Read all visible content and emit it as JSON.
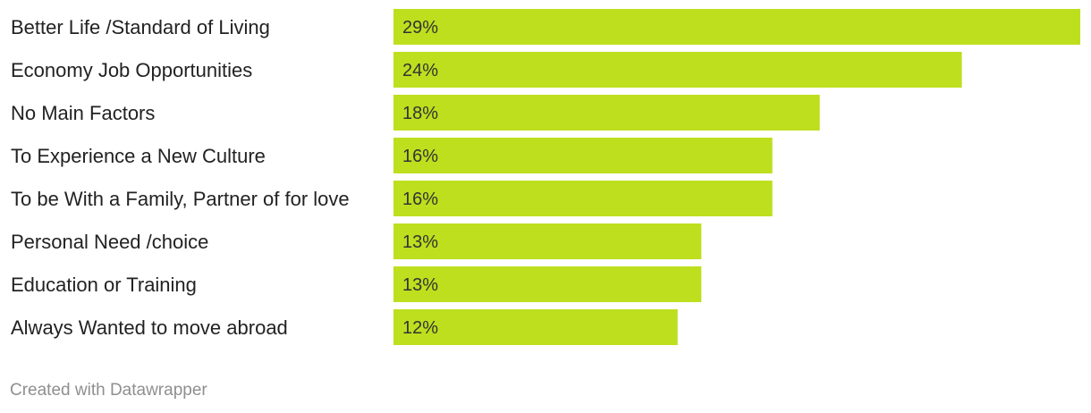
{
  "chart_data": {
    "type": "bar",
    "orientation": "horizontal",
    "categories": [
      "Better Life /Standard of Living",
      "Economy Job Opportunities",
      "No Main Factors",
      "To Experience a New Culture",
      "To be With a Family, Partner of for love",
      "Personal Need /choice",
      "Education or Training",
      "Always Wanted to move abroad"
    ],
    "values": [
      29,
      24,
      18,
      16,
      16,
      13,
      13,
      12
    ],
    "value_labels": [
      "29%",
      "24%",
      "18%",
      "16%",
      "16%",
      "13%",
      "13%",
      "12%"
    ],
    "unit": "%",
    "xlim": [
      0,
      29
    ],
    "bar_color": "#bddf1e",
    "grid": false,
    "legend": "none"
  },
  "footer": {
    "credit": "Created with Datawrapper"
  }
}
